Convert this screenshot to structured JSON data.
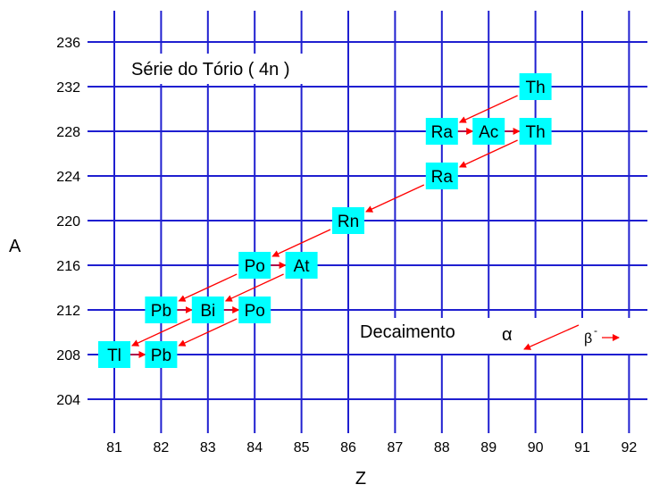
{
  "title": "Série do Tório ( 4n )",
  "axes": {
    "x_label": "Z",
    "y_label": "A",
    "x_ticks": [
      81,
      82,
      83,
      84,
      85,
      86,
      87,
      88,
      89,
      90,
      91,
      92
    ],
    "y_ticks": [
      236,
      232,
      228,
      224,
      220,
      216,
      212,
      208,
      204
    ]
  },
  "legend": {
    "label": "Decaimento",
    "alpha_symbol": "α",
    "beta_symbol": "β",
    "beta_superscript": "-"
  },
  "colors": {
    "grid": "#1f1fd0",
    "node_fill": "#00ffff",
    "arrow": "#ff0000",
    "text": "#000000"
  },
  "nuclides": [
    {
      "id": "th232",
      "symbol": "Th",
      "z": 90,
      "a": 232
    },
    {
      "id": "ra228",
      "symbol": "Ra",
      "z": 88,
      "a": 228
    },
    {
      "id": "ac228",
      "symbol": "Ac",
      "z": 89,
      "a": 228
    },
    {
      "id": "th228",
      "symbol": "Th",
      "z": 90,
      "a": 228
    },
    {
      "id": "ra224",
      "symbol": "Ra",
      "z": 88,
      "a": 224
    },
    {
      "id": "rn220",
      "symbol": "Rn",
      "z": 86,
      "a": 220
    },
    {
      "id": "po216",
      "symbol": "Po",
      "z": 84,
      "a": 216
    },
    {
      "id": "at216",
      "symbol": "At",
      "z": 85,
      "a": 216
    },
    {
      "id": "pb212",
      "symbol": "Pb",
      "z": 82,
      "a": 212
    },
    {
      "id": "bi212",
      "symbol": "Bi",
      "z": 83,
      "a": 212
    },
    {
      "id": "po212",
      "symbol": "Po",
      "z": 84,
      "a": 212
    },
    {
      "id": "tl208",
      "symbol": "Tl",
      "z": 81,
      "a": 208
    },
    {
      "id": "pb208",
      "symbol": "Pb",
      "z": 82,
      "a": 208
    }
  ],
  "decays": [
    {
      "from": "th232",
      "to": "ra228",
      "type": "alpha"
    },
    {
      "from": "ra228",
      "to": "ac228",
      "type": "beta"
    },
    {
      "from": "ac228",
      "to": "th228",
      "type": "beta"
    },
    {
      "from": "th228",
      "to": "ra224",
      "type": "alpha"
    },
    {
      "from": "ra224",
      "to": "rn220",
      "type": "alpha"
    },
    {
      "from": "rn220",
      "to": "po216",
      "type": "alpha"
    },
    {
      "from": "po216",
      "to": "at216",
      "type": "beta"
    },
    {
      "from": "po216",
      "to": "pb212",
      "type": "alpha"
    },
    {
      "from": "at216",
      "to": "bi212",
      "type": "alpha"
    },
    {
      "from": "pb212",
      "to": "bi212",
      "type": "beta"
    },
    {
      "from": "bi212",
      "to": "po212",
      "type": "beta"
    },
    {
      "from": "bi212",
      "to": "tl208",
      "type": "alpha"
    },
    {
      "from": "po212",
      "to": "pb208",
      "type": "alpha"
    },
    {
      "from": "tl208",
      "to": "pb208",
      "type": "beta"
    }
  ]
}
